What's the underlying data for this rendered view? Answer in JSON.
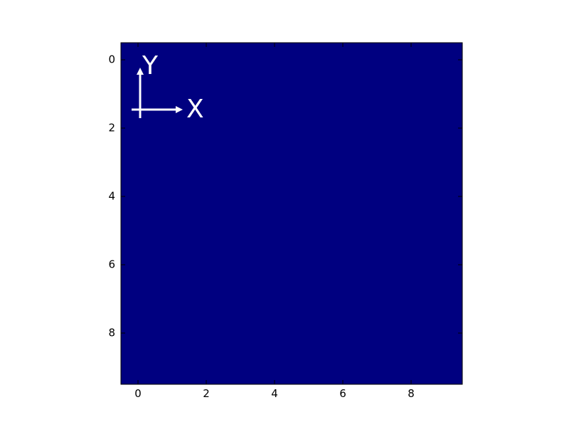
{
  "chart_data": {
    "type": "heatmap",
    "title": "",
    "xlabel": "",
    "ylabel": "",
    "xlim": [
      -0.5,
      9.5
    ],
    "ylim": [
      9.5,
      -0.5
    ],
    "y_inverted": true,
    "grid": false,
    "x_ticks": [
      0,
      2,
      4,
      6,
      8
    ],
    "y_ticks": [
      0,
      2,
      4,
      6,
      8
    ],
    "x_tick_labels": [
      "0",
      "2",
      "4",
      "6",
      "8"
    ],
    "y_tick_labels": [
      "0",
      "2",
      "4",
      "6",
      "8"
    ],
    "shape": [
      10,
      10
    ],
    "fill_color": "#000080",
    "values_uniform": true,
    "annotations": [
      {
        "text": "X",
        "direction": "right",
        "color": "#ffffff"
      },
      {
        "text": "Y",
        "direction": "up",
        "color": "#ffffff"
      }
    ]
  }
}
